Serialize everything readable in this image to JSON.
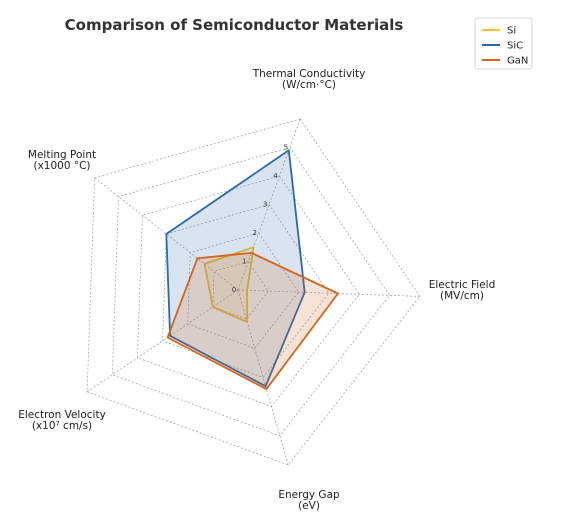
{
  "chart_data": {
    "type": "radar",
    "title": "Comparison of Semiconductor Materials",
    "axes": [
      [
        "Thermal Conductivity",
        "(W/cm·°C)"
      ],
      [
        "Electric Field",
        "(MV/cm)"
      ],
      [
        "Energy Gap",
        "(eV)"
      ],
      [
        "Electron Velocity",
        "(x10⁷ cm/s)"
      ],
      [
        "Melting Point",
        "(x1000 °C)"
      ]
    ],
    "rlim": [
      0,
      5
    ],
    "ticks": [
      "0",
      "1",
      "2",
      "3",
      "4",
      "5"
    ],
    "grid": true,
    "legend_position": "top-right",
    "series": [
      {
        "name": "Si",
        "values": [
          1.5,
          0.3,
          1.1,
          1.0,
          1.4
        ],
        "color": "#f2c230",
        "fill_opacity": 0.12
      },
      {
        "name": "SiC",
        "values": [
          4.9,
          2.2,
          3.3,
          2.7,
          3.0
        ],
        "color": "#2a6aad",
        "fill_opacity": 0.18
      },
      {
        "name": "GaN",
        "values": [
          1.3,
          3.3,
          3.4,
          2.8,
          1.7
        ],
        "color": "#d2661b",
        "fill_opacity": 0.18
      }
    ]
  }
}
